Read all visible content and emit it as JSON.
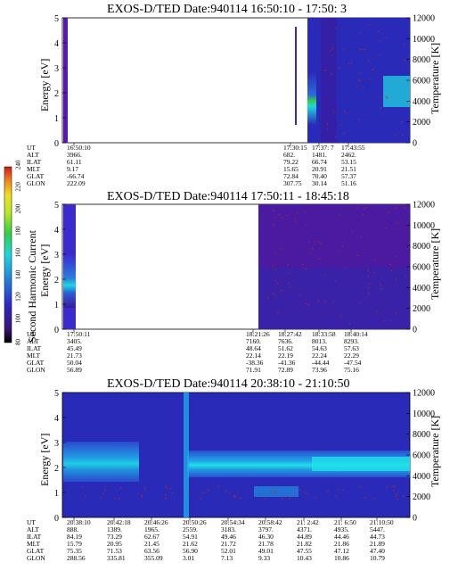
{
  "colors": {
    "background": "#ffffff",
    "spectrogram_base": "#2a2ab8",
    "spectrogram_dark": "#3a1a9a",
    "spectrogram_cyan": "#1fd6e0",
    "spectrogram_green": "#31d045",
    "temperature_dots": "#c02a1f"
  },
  "colorbar": {
    "label": "Second Harmonic Current",
    "ticks": [
      "80",
      "100",
      "120",
      "140",
      "160",
      "180",
      "200",
      "220",
      "240"
    ]
  },
  "chart_data": [
    {
      "type": "heatmap",
      "title": "EXOS-D/TED   Date:940114   16:50:10 - 17:50: 3",
      "ylabel": "Energy [eV]",
      "y2label": "Temperature [K]",
      "ylim": [
        0,
        5
      ],
      "y2lim": [
        0,
        12000
      ],
      "yticks": [
        "0",
        "1",
        "2",
        "3",
        "4",
        "5"
      ],
      "y2ticks": [
        "0",
        "2000",
        "4000",
        "6000",
        "8000",
        "10000",
        "12000"
      ],
      "ephemeris_labels": [
        "UT",
        "ALT",
        "ILAT",
        "MLT",
        "GLAT",
        "GLON"
      ],
      "ephemeris_columns": [
        [
          "16:50:10",
          "3966.",
          "61.11",
          "9.17",
          "-66.74",
          "222.09"
        ],
        [
          "17:30:15",
          "682.",
          "79.22",
          "15.65",
          "72.84",
          "307.75"
        ],
        [
          "17:37: 7",
          "1481.",
          "66.74",
          "20.91",
          "70.40",
          "30.14"
        ],
        [
          "17:43:55",
          "2462.",
          "53.15",
          "21.51",
          "57.37",
          "51.16"
        ]
      ]
    },
    {
      "type": "heatmap",
      "title": "EXOS-D/TED   Date:940114   17:50:11 - 18:45:18",
      "ylabel": "Energy [eV]",
      "y2label": "Temperature [K]",
      "ylim": [
        0,
        5
      ],
      "y2lim": [
        0,
        12000
      ],
      "yticks": [
        "0",
        "1",
        "2",
        "3",
        "4",
        "5"
      ],
      "y2ticks": [
        "0",
        "2000",
        "4000",
        "6000",
        "8000",
        "10000",
        "12000"
      ],
      "ephemeris_labels": [
        "UT",
        "ALT",
        "ILAT",
        "MLT",
        "GLAT",
        "GLON"
      ],
      "ephemeris_columns": [
        [
          "17:50:11",
          "3405.",
          "45.49",
          "21.73",
          "50.04",
          "56.89"
        ],
        [
          "18:21:26",
          "7160.",
          "48.64",
          "22.14",
          "-38.36",
          "71.91"
        ],
        [
          "18:27:42",
          "7636.",
          "51.62",
          "22.19",
          "-41.36",
          "72.89"
        ],
        [
          "18:33:58",
          "8013.",
          "54.63",
          "22.24",
          "-44.44",
          "73.96"
        ],
        [
          "18:40:14",
          "8293.",
          "57.63",
          "22.29",
          "-47.54",
          "75.16"
        ]
      ]
    },
    {
      "type": "heatmap",
      "title": "EXOS-D/TED   Date:940114   20:38:10 - 21:10:50",
      "ylabel": "Energy [eV]",
      "y2label": "Temperature [K]",
      "ylim": [
        0,
        5
      ],
      "y2lim": [
        0,
        12000
      ],
      "yticks": [
        "0",
        "1",
        "2",
        "3",
        "4",
        "5"
      ],
      "y2ticks": [
        "0",
        "2000",
        "4000",
        "6000",
        "8000",
        "10000",
        "12000"
      ],
      "ephemeris_labels": [
        "UT",
        "ALT",
        "ILAT",
        "MLT",
        "GLAT",
        "GLON"
      ],
      "ephemeris_columns": [
        [
          "20:38:10",
          "888.",
          "84.19",
          "15.79",
          "75.35",
          "288.56"
        ],
        [
          "20:42:18",
          "1389.",
          "73.29",
          "20.95",
          "71.53",
          "335.81"
        ],
        [
          "20:46:26",
          "1965.",
          "62.67",
          "21.45",
          "63.56",
          "355.09"
        ],
        [
          "20:50:26",
          "2559.",
          "54.91",
          "21.62",
          "56.90",
          "3.01"
        ],
        [
          "20:54:34",
          "3183.",
          "49.46",
          "21.72",
          "52.01",
          "7.13"
        ],
        [
          "20:58:42",
          "3797.",
          "46.30",
          "21.78",
          "49.01",
          "9.33"
        ],
        [
          "21: 2:42",
          "4371.",
          "44.89",
          "21.82",
          "47.55",
          "10.43"
        ],
        [
          "21: 6:50",
          "4935.",
          "44.46",
          "21.86",
          "47.12",
          "10.86"
        ],
        [
          "21:10:50",
          "5447.",
          "44.73",
          "21.89",
          "47.40",
          "10.79"
        ]
      ]
    }
  ]
}
